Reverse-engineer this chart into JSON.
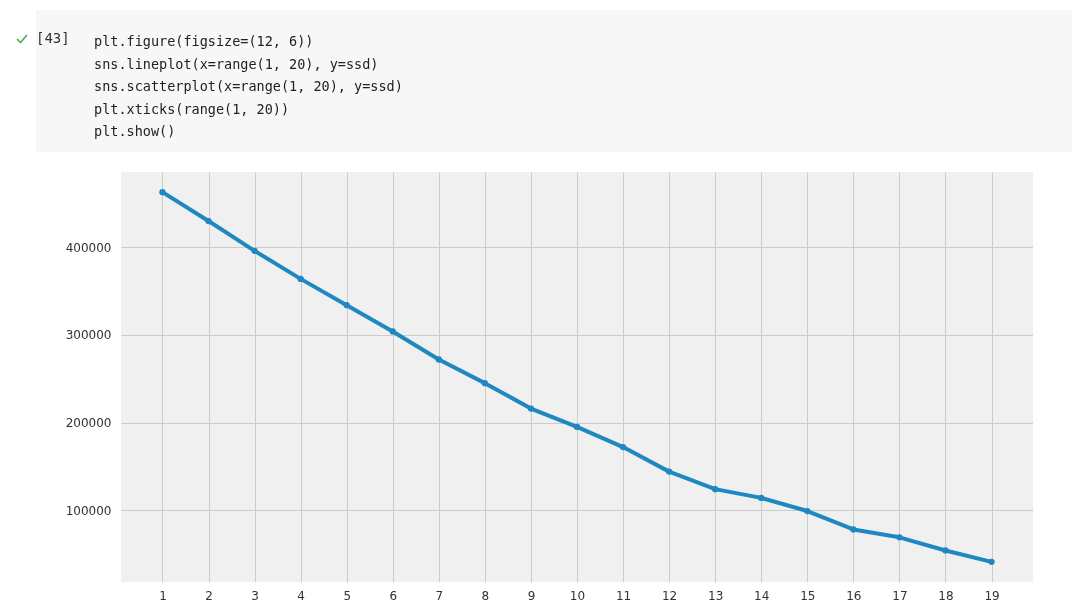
{
  "chart_data": {
    "type": "line",
    "annotations": [
      "[43]",
      "plt.figure(figsize=(12, 6))",
      "sns.lineplot(x=range(1, 20), y=ssd)",
      "sns.scatterplot(x=range(1, 20), y=ssd)",
      "plt.xticks(range(1, 20))",
      "plt.show()"
    ],
    "x": [
      1,
      2,
      3,
      4,
      5,
      6,
      7,
      8,
      9,
      10,
      11,
      12,
      13,
      14,
      15,
      16,
      17,
      18,
      19
    ],
    "series": [
      {
        "color": "#1f88c1",
        "values": [
          463000,
          430000,
          396000,
          364000,
          334000,
          304000,
          272000,
          245000,
          216000,
          195000,
          172000,
          144000,
          124000,
          114000,
          99000,
          78000,
          69000,
          54000,
          41000
        ]
      }
    ],
    "xlim": [
      0.1,
      19.9
    ],
    "xticks": [
      1,
      2,
      3,
      4,
      5,
      6,
      7,
      8,
      9,
      10,
      11,
      12,
      13,
      14,
      15,
      16,
      17,
      18,
      19
    ],
    "ylim": [
      18000,
      486000
    ],
    "yticks": [
      100000,
      200000,
      300000,
      400000
    ],
    "grid": true,
    "marker": "circle",
    "line_style": "solid"
  }
}
